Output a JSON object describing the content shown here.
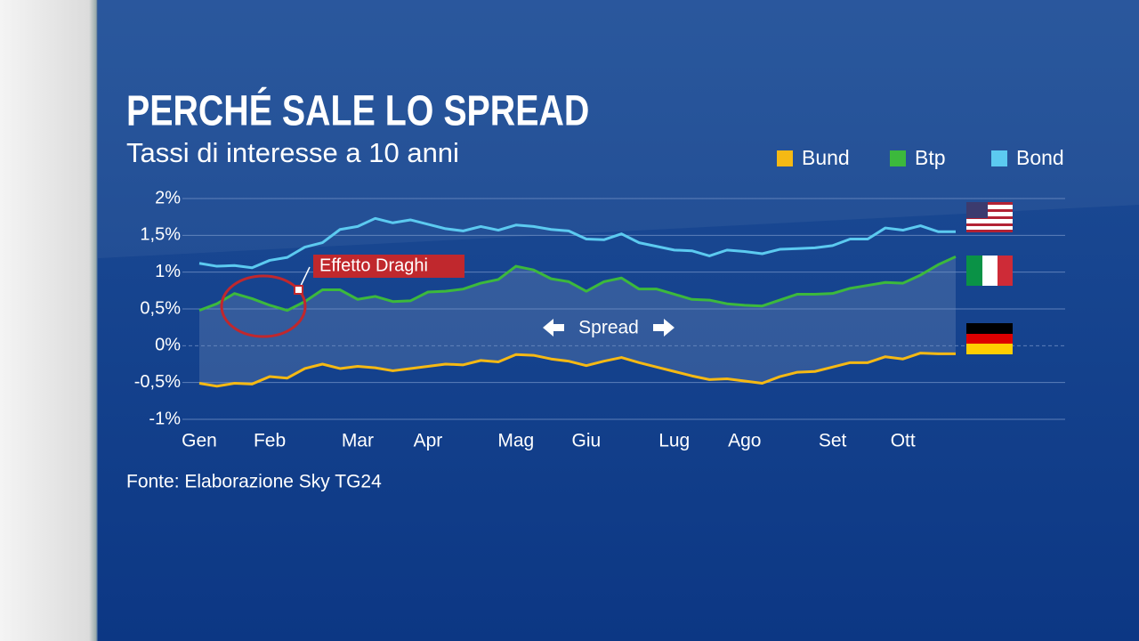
{
  "chart_data": {
    "type": "line",
    "title": "PERCHÉ SALE LO SPREAD",
    "subtitle": "Tassi di interesse a 10 anni",
    "annotations": [
      "Effetto Draghi",
      "Spread"
    ],
    "source": "Fonte: Elaborazione Sky TG24",
    "categories": [
      "Gen",
      null,
      null,
      null,
      "Feb",
      null,
      null,
      null,
      null,
      "Mar",
      null,
      null,
      null,
      "Apr",
      null,
      null,
      null,
      null,
      "Mag",
      null,
      null,
      null,
      "Giu",
      null,
      null,
      null,
      null,
      "Lug",
      null,
      null,
      null,
      "Ago",
      null,
      null,
      null,
      null,
      "Set",
      null,
      null,
      null,
      "Ott",
      null,
      null,
      null
    ],
    "series": [
      {
        "name": "Bund",
        "color": "#f5b914",
        "values": [
          -0.51,
          -0.55,
          -0.51,
          -0.52,
          -0.42,
          -0.44,
          -0.31,
          -0.25,
          -0.31,
          -0.28,
          -0.3,
          -0.34,
          -0.31,
          -0.28,
          -0.25,
          -0.26,
          -0.2,
          -0.22,
          -0.12,
          -0.13,
          -0.18,
          -0.21,
          -0.27,
          -0.21,
          -0.16,
          -0.23,
          -0.29,
          -0.35,
          -0.41,
          -0.46,
          -0.45,
          -0.48,
          -0.51,
          -0.42,
          -0.36,
          -0.35,
          -0.29,
          -0.23,
          -0.23,
          -0.15,
          -0.18,
          -0.1,
          -0.11,
          -0.11
        ]
      },
      {
        "name": "Btp",
        "color": "#3cb93c",
        "values": [
          0.48,
          0.57,
          0.71,
          0.64,
          0.55,
          0.48,
          0.6,
          0.76,
          0.76,
          0.63,
          0.67,
          0.6,
          0.61,
          0.73,
          0.74,
          0.77,
          0.85,
          0.9,
          1.08,
          1.03,
          0.91,
          0.87,
          0.74,
          0.87,
          0.92,
          0.77,
          0.77,
          0.7,
          0.63,
          0.62,
          0.57,
          0.55,
          0.54,
          0.62,
          0.7,
          0.7,
          0.71,
          0.78,
          0.82,
          0.86,
          0.85,
          0.96,
          1.1,
          1.21
        ]
      },
      {
        "name": "Bond",
        "color": "#5ccaf0",
        "values": [
          1.12,
          1.08,
          1.09,
          1.06,
          1.16,
          1.2,
          1.34,
          1.4,
          1.58,
          1.62,
          1.73,
          1.67,
          1.71,
          1.65,
          1.59,
          1.56,
          1.62,
          1.57,
          1.64,
          1.62,
          1.58,
          1.56,
          1.45,
          1.44,
          1.52,
          1.4,
          1.35,
          1.3,
          1.29,
          1.22,
          1.3,
          1.28,
          1.25,
          1.31,
          1.32,
          1.33,
          1.36,
          1.45,
          1.45,
          1.6,
          1.57,
          1.63,
          1.55,
          1.55
        ]
      }
    ],
    "ylim": [
      -1,
      2
    ],
    "yticks": [
      {
        "value": -1,
        "label": "-1%"
      },
      {
        "value": -0.5,
        "label": "-0,5%"
      },
      {
        "value": 0,
        "label": "0%"
      },
      {
        "value": 0.5,
        "label": "0,5%"
      },
      {
        "value": 1,
        "label": "1%"
      },
      {
        "value": 1.5,
        "label": "1,5%"
      },
      {
        "value": 2,
        "label": "2%"
      }
    ],
    "grid": true
  }
}
